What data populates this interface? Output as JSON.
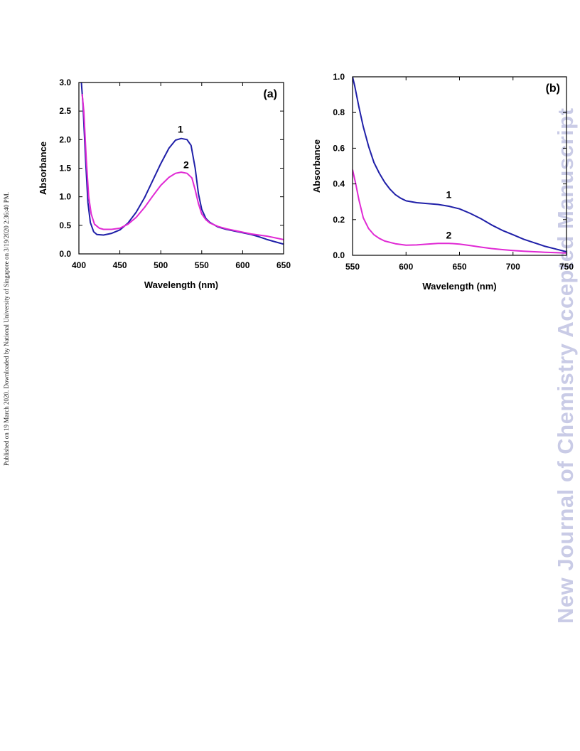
{
  "side_note": "Published on 19 March 2020. Downloaded by National University of Singapore on 3/19/2020 2:36:40 PM.",
  "watermark": "New Journal of Chemistry Accepted Manuscript",
  "colors": {
    "series_1": "#1f1fa8",
    "series_2": "#e029d4"
  },
  "chart_data": [
    {
      "type": "line",
      "panel": "(a)",
      "xlabel": "Wavelength (nm)",
      "ylabel": "Absorbance",
      "xlim": [
        400,
        650
      ],
      "ylim": [
        0,
        3.0
      ],
      "xticks": [
        400,
        450,
        500,
        550,
        600,
        650
      ],
      "yticks": [
        "0.0",
        "0.5",
        "1.0",
        "1.5",
        "2.0",
        "2.5",
        "3.0"
      ],
      "series": [
        {
          "name": "1",
          "label_at": [
            524,
            2.12
          ],
          "points": [
            [
              403,
              3.0
            ],
            [
              405,
              2.6
            ],
            [
              408,
              1.7
            ],
            [
              411,
              0.9
            ],
            [
              414,
              0.55
            ],
            [
              418,
              0.39
            ],
            [
              422,
              0.34
            ],
            [
              430,
              0.33
            ],
            [
              440,
              0.36
            ],
            [
              450,
              0.42
            ],
            [
              460,
              0.54
            ],
            [
              470,
              0.73
            ],
            [
              480,
              0.98
            ],
            [
              490,
              1.28
            ],
            [
              500,
              1.58
            ],
            [
              510,
              1.85
            ],
            [
              518,
              1.99
            ],
            [
              525,
              2.02
            ],
            [
              532,
              2.0
            ],
            [
              537,
              1.9
            ],
            [
              542,
              1.5
            ],
            [
              546,
              1.05
            ],
            [
              550,
              0.78
            ],
            [
              555,
              0.62
            ],
            [
              560,
              0.55
            ],
            [
              570,
              0.47
            ],
            [
              580,
              0.43
            ],
            [
              590,
              0.4
            ],
            [
              600,
              0.37
            ],
            [
              610,
              0.34
            ],
            [
              620,
              0.3
            ],
            [
              628,
              0.26
            ],
            [
              630,
              0.25
            ],
            [
              640,
              0.21
            ],
            [
              650,
              0.17
            ]
          ]
        },
        {
          "name": "2",
          "label_at": [
            531,
            1.5
          ],
          "points": [
            [
              404,
              2.8
            ],
            [
              406,
              2.5
            ],
            [
              409,
              1.65
            ],
            [
              412,
              1.0
            ],
            [
              415,
              0.7
            ],
            [
              419,
              0.52
            ],
            [
              425,
              0.45
            ],
            [
              430,
              0.43
            ],
            [
              440,
              0.43
            ],
            [
              450,
              0.45
            ],
            [
              460,
              0.52
            ],
            [
              470,
              0.64
            ],
            [
              480,
              0.81
            ],
            [
              490,
              1.01
            ],
            [
              500,
              1.2
            ],
            [
              510,
              1.34
            ],
            [
              518,
              1.41
            ],
            [
              525,
              1.43
            ],
            [
              532,
              1.41
            ],
            [
              538,
              1.33
            ],
            [
              542,
              1.12
            ],
            [
              546,
              0.88
            ],
            [
              550,
              0.7
            ],
            [
              555,
              0.6
            ],
            [
              560,
              0.54
            ],
            [
              570,
              0.48
            ],
            [
              580,
              0.44
            ],
            [
              590,
              0.41
            ],
            [
              600,
              0.38
            ],
            [
              610,
              0.35
            ],
            [
              620,
              0.33
            ],
            [
              630,
              0.31
            ],
            [
              640,
              0.28
            ],
            [
              650,
              0.25
            ]
          ]
        }
      ]
    },
    {
      "type": "line",
      "panel": "(b)",
      "xlabel": "Wavelength (nm)",
      "ylabel": "Absorbance",
      "xlim": [
        550,
        750
      ],
      "ylim": [
        0,
        1.0
      ],
      "xticks": [
        550,
        600,
        650,
        700,
        750
      ],
      "yticks": [
        "0.0",
        "0.2",
        "0.4",
        "0.6",
        "0.8",
        "1.0"
      ],
      "series": [
        {
          "name": "1",
          "label_at": [
            640,
            0.32
          ],
          "points": [
            [
              550,
              1.0
            ],
            [
              552,
              0.95
            ],
            [
              556,
              0.83
            ],
            [
              560,
              0.72
            ],
            [
              565,
              0.61
            ],
            [
              570,
              0.52
            ],
            [
              575,
              0.46
            ],
            [
              580,
              0.41
            ],
            [
              585,
              0.37
            ],
            [
              590,
              0.34
            ],
            [
              595,
              0.32
            ],
            [
              600,
              0.305
            ],
            [
              610,
              0.295
            ],
            [
              620,
              0.29
            ],
            [
              630,
              0.285
            ],
            [
              640,
              0.275
            ],
            [
              650,
              0.26
            ],
            [
              660,
              0.235
            ],
            [
              670,
              0.205
            ],
            [
              680,
              0.17
            ],
            [
              690,
              0.14
            ],
            [
              700,
              0.115
            ],
            [
              710,
              0.09
            ],
            [
              720,
              0.07
            ],
            [
              730,
              0.05
            ],
            [
              740,
              0.035
            ],
            [
              750,
              0.02
            ]
          ]
        },
        {
          "name": "2",
          "label_at": [
            640,
            0.094
          ],
          "points": [
            [
              550,
              0.48
            ],
            [
              553,
              0.4
            ],
            [
              556,
              0.31
            ],
            [
              560,
              0.21
            ],
            [
              565,
              0.15
            ],
            [
              570,
              0.115
            ],
            [
              575,
              0.095
            ],
            [
              580,
              0.08
            ],
            [
              590,
              0.065
            ],
            [
              600,
              0.057
            ],
            [
              610,
              0.058
            ],
            [
              620,
              0.063
            ],
            [
              630,
              0.067
            ],
            [
              640,
              0.067
            ],
            [
              650,
              0.063
            ],
            [
              660,
              0.055
            ],
            [
              670,
              0.046
            ],
            [
              680,
              0.038
            ],
            [
              690,
              0.032
            ],
            [
              700,
              0.027
            ],
            [
              710,
              0.023
            ],
            [
              720,
              0.02
            ],
            [
              730,
              0.017
            ],
            [
              740,
              0.015
            ],
            [
              750,
              0.013
            ]
          ]
        }
      ]
    }
  ]
}
